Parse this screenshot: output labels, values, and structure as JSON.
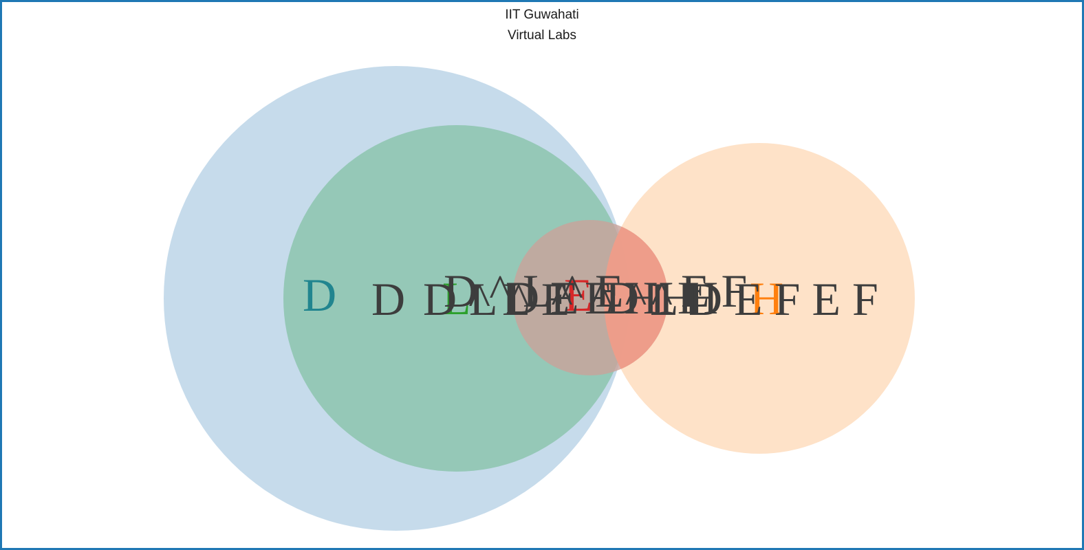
{
  "header": {
    "line1": "IIT Guwahati",
    "line2": "Virtual Labs"
  },
  "colors": {
    "set_d": "#a8c8e1",
    "set_l": "#84c1a6",
    "set_e": "#c9a39a",
    "set_e_overlap": "#f29a86",
    "set_h": "#fdd5b1",
    "label_d": "#21858f",
    "label_l": "#2ca02c",
    "label_e": "#d62728",
    "label_h": "#ff7f0e",
    "overlay_text": "#3d3d3d"
  },
  "sets": [
    {
      "id": "D",
      "label": "D"
    },
    {
      "id": "L",
      "label": "L"
    },
    {
      "id": "E",
      "label": "E"
    },
    {
      "id": "H",
      "label": "H"
    }
  ],
  "region_labels": [
    "D",
    "D ^ L",
    "D ^ L ^ E",
    "L ^ E",
    "D ^ E ^ H",
    "E ^ H",
    "D ^ H",
    "E F",
    "L D E F E F"
  ]
}
